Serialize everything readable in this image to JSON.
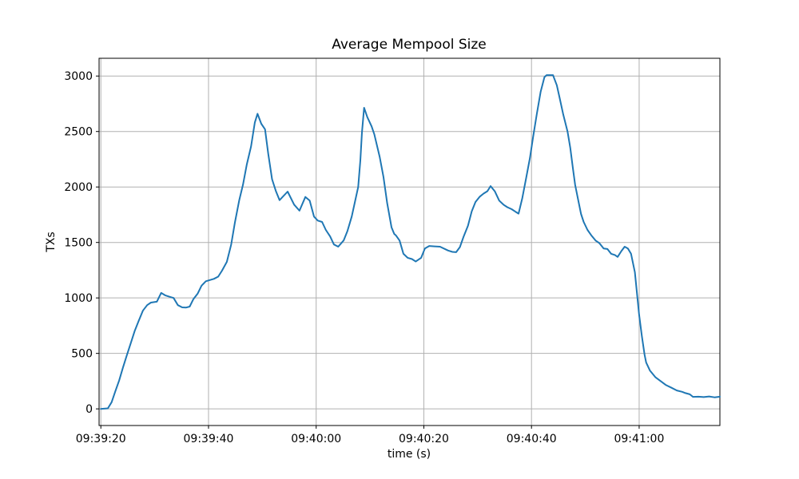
{
  "chart_data": {
    "type": "line",
    "title": "Average Mempool Size",
    "xlabel": "time (s)",
    "ylabel": "TXs",
    "grid": true,
    "legend": "none",
    "background_color": "#ffffff",
    "line_color": "#1f77b4",
    "grid_color": "#b0b0b0",
    "spine_color": "#000000",
    "x_axis": {
      "tick_labels": [
        "09:39:20",
        "09:39:40",
        "09:40:00",
        "09:40:20",
        "09:40:40",
        "09:41:00"
      ],
      "tick_seconds": [
        0,
        20,
        40,
        60,
        80,
        100
      ],
      "xlim_seconds": [
        -0.33,
        115
      ]
    },
    "y_axis": {
      "ticks": [
        0,
        500,
        1000,
        1500,
        2000,
        2500,
        3000
      ],
      "ylim": [
        -150,
        3160
      ]
    },
    "series": [
      {
        "name": "average-mempool-size",
        "points": [
          [
            0,
            0
          ],
          [
            1.3,
            5
          ],
          [
            2,
            60
          ],
          [
            2.7,
            160
          ],
          [
            3.4,
            255
          ],
          [
            4.1,
            370
          ],
          [
            4.8,
            480
          ],
          [
            5.6,
            600
          ],
          [
            6.3,
            705
          ],
          [
            7,
            790
          ],
          [
            7.8,
            885
          ],
          [
            8.6,
            935
          ],
          [
            9.3,
            958
          ],
          [
            10.4,
            966
          ],
          [
            11.2,
            1045
          ],
          [
            12,
            1022
          ],
          [
            12.8,
            1010
          ],
          [
            13.5,
            1000
          ],
          [
            14.3,
            935
          ],
          [
            15.1,
            915
          ],
          [
            15.8,
            913
          ],
          [
            16.5,
            922
          ],
          [
            17.2,
            990
          ],
          [
            18,
            1040
          ],
          [
            18.7,
            1110
          ],
          [
            19.5,
            1150
          ],
          [
            20.3,
            1162
          ],
          [
            21,
            1172
          ],
          [
            21.8,
            1192
          ],
          [
            22.5,
            1245
          ],
          [
            23.4,
            1325
          ],
          [
            24.2,
            1480
          ],
          [
            24.9,
            1680
          ],
          [
            25.7,
            1880
          ],
          [
            26.4,
            2020
          ],
          [
            27.1,
            2200
          ],
          [
            27.9,
            2365
          ],
          [
            28.6,
            2580
          ],
          [
            29.1,
            2660
          ],
          [
            29.8,
            2570
          ],
          [
            30.5,
            2520
          ],
          [
            31.1,
            2300
          ],
          [
            31.8,
            2070
          ],
          [
            32.5,
            1965
          ],
          [
            33.2,
            1881
          ],
          [
            34.7,
            1958
          ],
          [
            35.9,
            1841
          ],
          [
            36.9,
            1786
          ],
          [
            38,
            1910
          ],
          [
            38.8,
            1877
          ],
          [
            39.6,
            1733
          ],
          [
            40.3,
            1697
          ],
          [
            41.1,
            1685
          ],
          [
            41.8,
            1613
          ],
          [
            42.6,
            1554
          ],
          [
            43.3,
            1482
          ],
          [
            44.1,
            1462
          ],
          [
            45.1,
            1518
          ],
          [
            45.8,
            1602
          ],
          [
            46.6,
            1733
          ],
          [
            47.2,
            1865
          ],
          [
            47.8,
            2000
          ],
          [
            48.2,
            2240
          ],
          [
            48.5,
            2490
          ],
          [
            48.9,
            2714
          ],
          [
            49.5,
            2630
          ],
          [
            50.3,
            2546
          ],
          [
            50.8,
            2474
          ],
          [
            51.8,
            2271
          ],
          [
            52.5,
            2092
          ],
          [
            53.2,
            1853
          ],
          [
            54,
            1637
          ],
          [
            54.5,
            1577
          ],
          [
            54.8,
            1565
          ],
          [
            55.5,
            1517
          ],
          [
            56.2,
            1398
          ],
          [
            57,
            1362
          ],
          [
            57.8,
            1350
          ],
          [
            58.5,
            1328
          ],
          [
            59.5,
            1362
          ],
          [
            60.2,
            1446
          ],
          [
            61,
            1468
          ],
          [
            62,
            1465
          ],
          [
            63,
            1462
          ],
          [
            64.5,
            1427
          ],
          [
            65.3,
            1415
          ],
          [
            66,
            1412
          ],
          [
            66.7,
            1458
          ],
          [
            67.4,
            1554
          ],
          [
            68.2,
            1650
          ],
          [
            68.9,
            1780
          ],
          [
            69.6,
            1865
          ],
          [
            70.4,
            1913
          ],
          [
            71.1,
            1940
          ],
          [
            71.8,
            1962
          ],
          [
            72.4,
            2008
          ],
          [
            73.2,
            1960
          ],
          [
            74,
            1877
          ],
          [
            74.8,
            1840
          ],
          [
            75.5,
            1818
          ],
          [
            76.3,
            1800
          ],
          [
            77,
            1778
          ],
          [
            77.6,
            1760
          ],
          [
            78.3,
            1900
          ],
          [
            79,
            2080
          ],
          [
            79.7,
            2260
          ],
          [
            80.3,
            2450
          ],
          [
            81,
            2660
          ],
          [
            81.7,
            2860
          ],
          [
            82.4,
            2990
          ],
          [
            82.8,
            3008
          ],
          [
            84,
            3008
          ],
          [
            84.7,
            2917
          ],
          [
            85.2,
            2810
          ],
          [
            85.9,
            2654
          ],
          [
            86.7,
            2500
          ],
          [
            87.2,
            2355
          ],
          [
            87.7,
            2164
          ],
          [
            88.1,
            2020
          ],
          [
            88.7,
            1877
          ],
          [
            89.2,
            1757
          ],
          [
            89.7,
            1685
          ],
          [
            90.4,
            1613
          ],
          [
            91.1,
            1565
          ],
          [
            91.9,
            1517
          ],
          [
            92.6,
            1494
          ],
          [
            93.4,
            1446
          ],
          [
            94.1,
            1441
          ],
          [
            94.8,
            1398
          ],
          [
            95.5,
            1387
          ],
          [
            96,
            1370
          ],
          [
            96.7,
            1422
          ],
          [
            97.3,
            1462
          ],
          [
            97.9,
            1446
          ],
          [
            98.5,
            1398
          ],
          [
            99.2,
            1231
          ],
          [
            100,
            848
          ],
          [
            100.5,
            657
          ],
          [
            101,
            489
          ],
          [
            101.3,
            418
          ],
          [
            102,
            346
          ],
          [
            103,
            286
          ],
          [
            104,
            250
          ],
          [
            105,
            214
          ],
          [
            106,
            190
          ],
          [
            107,
            166
          ],
          [
            108,
            154
          ],
          [
            108.6,
            142
          ],
          [
            109.4,
            131
          ],
          [
            110,
            108
          ],
          [
            111,
            110
          ],
          [
            112,
            106
          ],
          [
            113,
            112
          ],
          [
            114,
            104
          ],
          [
            115,
            110
          ]
        ]
      }
    ]
  }
}
